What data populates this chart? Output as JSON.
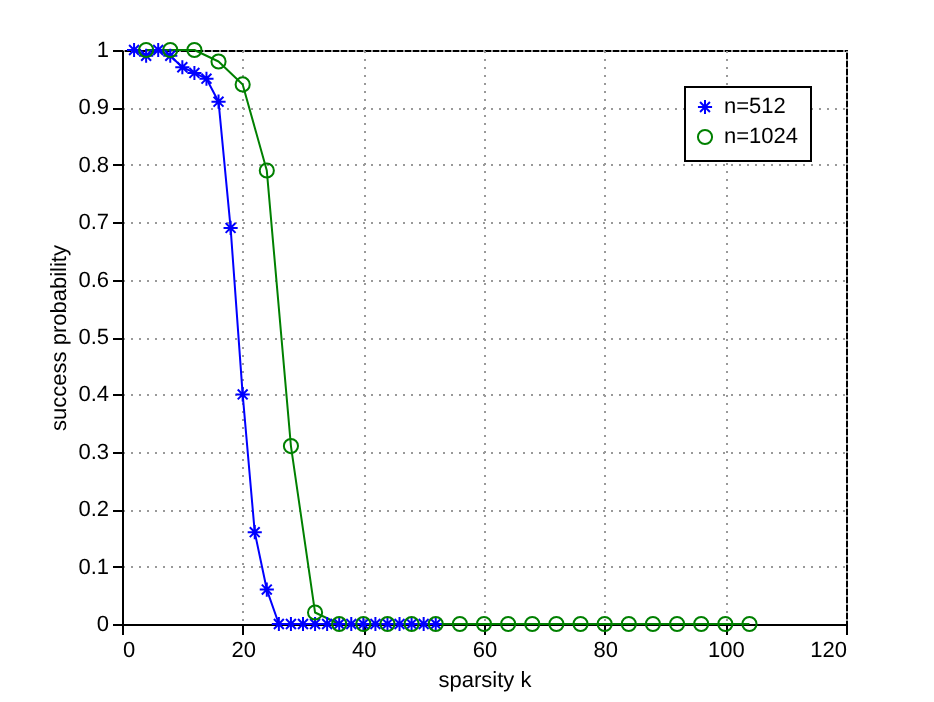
{
  "chart_data": {
    "type": "line",
    "xlabel": "sparsity k",
    "ylabel": "success probability",
    "xlim": [
      0,
      120
    ],
    "ylim": [
      0,
      1
    ],
    "xticks": [
      0,
      20,
      40,
      60,
      80,
      100,
      120
    ],
    "yticks": [
      0,
      0.1,
      0.2,
      0.3,
      0.4,
      0.5,
      0.6,
      0.7,
      0.8,
      0.9,
      1
    ],
    "grid": true,
    "legend": "top right",
    "line_style": "solid",
    "series": [
      {
        "name": "n=512",
        "color": "#0000ff",
        "marker": "cross",
        "x": [
          2,
          4,
          6,
          8,
          10,
          12,
          14,
          16,
          18,
          20,
          22,
          24,
          26,
          28,
          30,
          32,
          34,
          36,
          38,
          40,
          42,
          44,
          46,
          48,
          50,
          52
        ],
        "values": [
          1,
          0.99,
          1,
          0.99,
          0.97,
          0.96,
          0.95,
          0.91,
          0.69,
          0.4,
          0.16,
          0.06,
          0,
          0,
          0,
          0,
          0,
          0,
          0,
          0,
          0,
          0,
          0,
          0,
          0,
          0
        ]
      },
      {
        "name": "n=1024",
        "color": "#008000",
        "marker": "circle",
        "x": [
          4,
          8,
          12,
          16,
          20,
          24,
          28,
          32,
          36,
          40,
          44,
          48,
          52,
          56,
          60,
          64,
          68,
          72,
          76,
          80,
          84,
          88,
          92,
          96,
          100,
          104
        ],
        "values": [
          1,
          1,
          1,
          0.98,
          0.94,
          0.79,
          0.31,
          0.02,
          0,
          0,
          0,
          0,
          0,
          0,
          0,
          0,
          0,
          0,
          0,
          0,
          0,
          0,
          0,
          0,
          0,
          0
        ]
      }
    ]
  }
}
